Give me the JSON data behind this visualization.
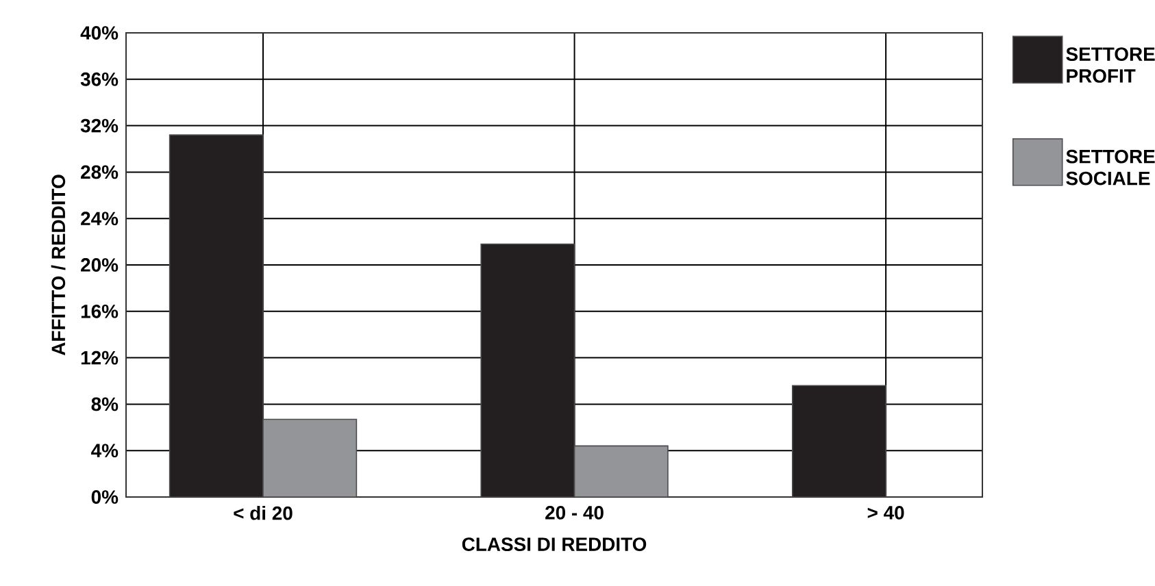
{
  "chart_data": {
    "type": "bar",
    "xlabel": "CLASSI DI REDDITO",
    "ylabel": "AFFITTO / REDDITO",
    "categories": [
      "< di 20",
      "20 - 40",
      "> 40"
    ],
    "series": [
      {
        "name": "SETTORE PROFIT",
        "color": "#231f20",
        "values": [
          31.2,
          21.8,
          9.6
        ]
      },
      {
        "name": "SETTORE SOCIALE",
        "color": "#939598",
        "values": [
          6.7,
          4.4,
          null
        ]
      }
    ],
    "ylim": [
      0,
      40
    ],
    "yticks": [
      {
        "value": 0,
        "label": "0%"
      },
      {
        "value": 4,
        "label": "4%"
      },
      {
        "value": 8,
        "label": "8%"
      },
      {
        "value": 12,
        "label": "12%"
      },
      {
        "value": 16,
        "label": "16%"
      },
      {
        "value": 20,
        "label": "20%"
      },
      {
        "value": 24,
        "label": "24%"
      },
      {
        "value": 28,
        "label": "28%"
      },
      {
        "value": 32,
        "label": "32%"
      },
      {
        "value": 36,
        "label": "36%"
      },
      {
        "value": 40,
        "label": "40%"
      }
    ],
    "grid": true,
    "legend": "right"
  }
}
